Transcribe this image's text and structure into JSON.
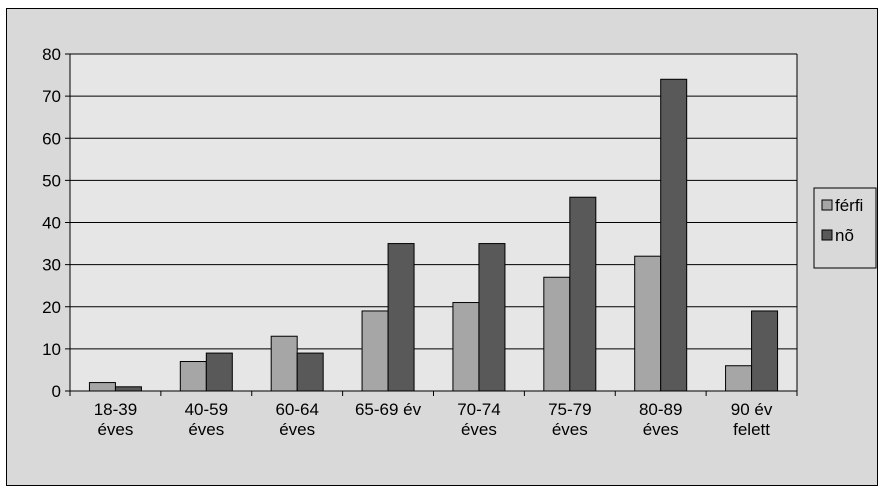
{
  "chart_data": {
    "type": "bar",
    "categories": [
      [
        "18-39",
        "éves"
      ],
      [
        "40-59",
        "éves"
      ],
      [
        "60-64",
        "éves"
      ],
      [
        "65-69 év"
      ],
      [
        "70-74",
        "éves"
      ],
      [
        "75-79",
        "éves"
      ],
      [
        "80-89",
        "éves"
      ],
      [
        "90 év",
        "felett"
      ]
    ],
    "series": [
      {
        "name": "férfi",
        "color": "#a6a6a6",
        "values": [
          2,
          7,
          13,
          19,
          21,
          27,
          32,
          6
        ]
      },
      {
        "name": "nõ",
        "color": "#595959",
        "values": [
          1,
          9,
          9,
          35,
          35,
          46,
          74,
          19
        ]
      }
    ],
    "ylim": [
      0,
      80
    ],
    "yticks": [
      0,
      10,
      20,
      30,
      40,
      50,
      60,
      70,
      80
    ],
    "grid": true,
    "legend": "right",
    "plot_background": "#e6e6e6",
    "chart_background": "#d9d9d9"
  }
}
